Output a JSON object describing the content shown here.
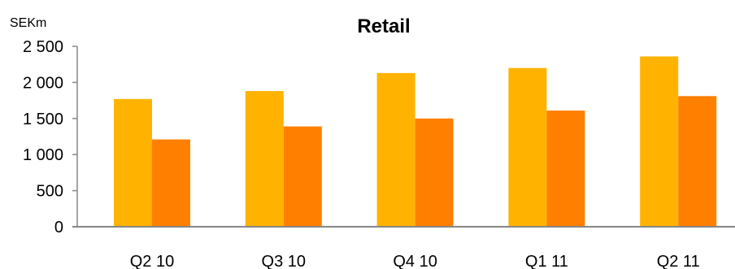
{
  "chart_data": {
    "type": "bar",
    "title": "Retail",
    "unit": "SEKm",
    "xlabel": "",
    "ylabel": "",
    "categories": [
      "Q2 10",
      "Q3 10",
      "Q4 10",
      "Q1 11",
      "Q2 11"
    ],
    "series": [
      {
        "values": [
          1770,
          1880,
          2130,
          2200,
          2360
        ]
      },
      {
        "values": [
          1210,
          1390,
          1500,
          1610,
          1810
        ]
      }
    ],
    "ylim": [
      0,
      2500
    ],
    "yticks": [
      0,
      500,
      1000,
      1500,
      2000,
      2500
    ],
    "ytick_labels": [
      "0",
      "500",
      "1 000",
      "1 500",
      "2 000",
      "2 500"
    ],
    "grid": false,
    "legend": "none",
    "colors": [
      "#FFB300",
      "#FF8000"
    ],
    "axis_color": "#868686"
  }
}
